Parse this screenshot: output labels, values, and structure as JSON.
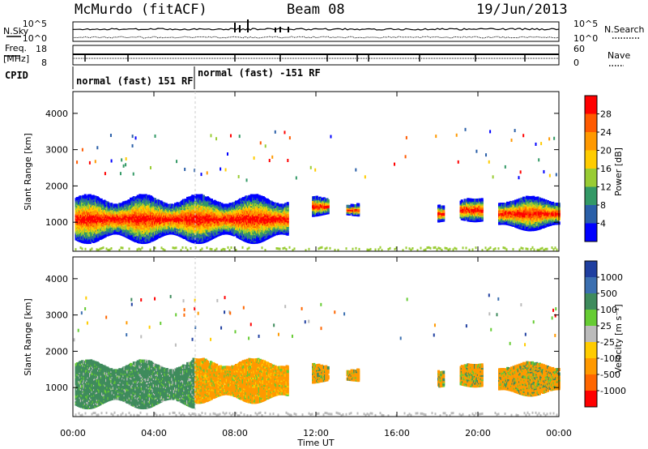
{
  "header": {
    "radar": "McMurdo (fitACF)",
    "beam": "Beam 08",
    "date": "19/Jun/2013"
  },
  "param_panels": {
    "nsky_label": "N.Sky",
    "nsearch_label": "N.Search",
    "noise_left_ticks": [
      "10^5",
      "10^0"
    ],
    "noise_right_ticks": [
      "10^5",
      "10^0"
    ],
    "freq_label": "Freq.",
    "freq_unit": "[MHz]",
    "freq_ticks": [
      "18",
      "8"
    ],
    "nave_label": "Nave",
    "nave_ticks": [
      "60",
      "0"
    ],
    "cpid_label": "CPID",
    "cpid_segments": [
      "normal (fast) 151 RF",
      "normal (fast) -151 RF"
    ]
  },
  "x_axis": {
    "label": "Time UT",
    "ticks": [
      "00:00",
      "04:00",
      "08:00",
      "12:00",
      "16:00",
      "20:00",
      "00:00"
    ]
  },
  "chart_data": [
    {
      "type": "heatmap",
      "name": "power",
      "ylabel": "Slant Range [km]",
      "y_ticks": [
        "1000",
        "2000",
        "3000",
        "4000"
      ],
      "ylim": [
        200,
        4600
      ],
      "xlim_hours": [
        0,
        24
      ],
      "colorbar_label": "Power [dB]",
      "colorbar_ticks": [
        "28",
        "24",
        "20",
        "16",
        "12",
        "8",
        "4"
      ],
      "colorbar_colors": [
        "#ff0000",
        "#ff5a00",
        "#ff9900",
        "#ffcc00",
        "#99cc33",
        "#339966",
        "#2a5fa8",
        "#0000ff"
      ],
      "scatter_segments": [
        {
          "t0": 0.1,
          "t1": 10.6,
          "r_center": 1050,
          "r_half": 650
        },
        {
          "t0": 11.8,
          "t1": 12.6,
          "r_center": 1400,
          "r_half": 260
        },
        {
          "t0": 13.5,
          "t1": 14.1,
          "r_center": 1300,
          "r_half": 150
        },
        {
          "t0": 18.0,
          "t1": 18.3,
          "r_center": 1200,
          "r_half": 300
        },
        {
          "t0": 19.1,
          "t1": 20.2,
          "r_center": 1300,
          "r_half": 300
        },
        {
          "t0": 21.0,
          "t1": 24.0,
          "r_center": 1200,
          "r_half": 450
        }
      ]
    },
    {
      "type": "heatmap",
      "name": "velocity",
      "ylabel": "Slant Range [km]",
      "y_ticks": [
        "1000",
        "2000",
        "3000",
        "4000"
      ],
      "ylim": [
        200,
        4600
      ],
      "xlim_hours": [
        0,
        24
      ],
      "colorbar_label": "Velocity [m s⁻¹]",
      "colorbar_ticks": [
        "1000",
        "500",
        "100",
        "25",
        "-25",
        "-100",
        "-500",
        "-1000"
      ],
      "colorbar_colors": [
        "#1f3fa0",
        "#3b6fb0",
        "#3e8b5c",
        "#66cc33",
        "#bbbbbb",
        "#ffcc00",
        "#ff9900",
        "#ff6600",
        "#ff0000"
      ],
      "scatter_segments": [
        {
          "t0": 0.1,
          "t1": 5.9,
          "r_center": 1050,
          "r_half": 650
        },
        {
          "t0": 5.9,
          "t1": 10.6,
          "r_center": 1150,
          "r_half": 600
        },
        {
          "t0": 11.8,
          "t1": 12.6,
          "r_center": 1350,
          "r_half": 250
        },
        {
          "t0": 13.5,
          "t1": 14.1,
          "r_center": 1300,
          "r_half": 150
        },
        {
          "t0": 18.0,
          "t1": 18.3,
          "r_center": 1200,
          "r_half": 300
        },
        {
          "t0": 19.1,
          "t1": 20.2,
          "r_center": 1300,
          "r_half": 300
        },
        {
          "t0": 21.0,
          "t1": 24.0,
          "r_center": 1200,
          "r_half": 450
        }
      ]
    }
  ]
}
